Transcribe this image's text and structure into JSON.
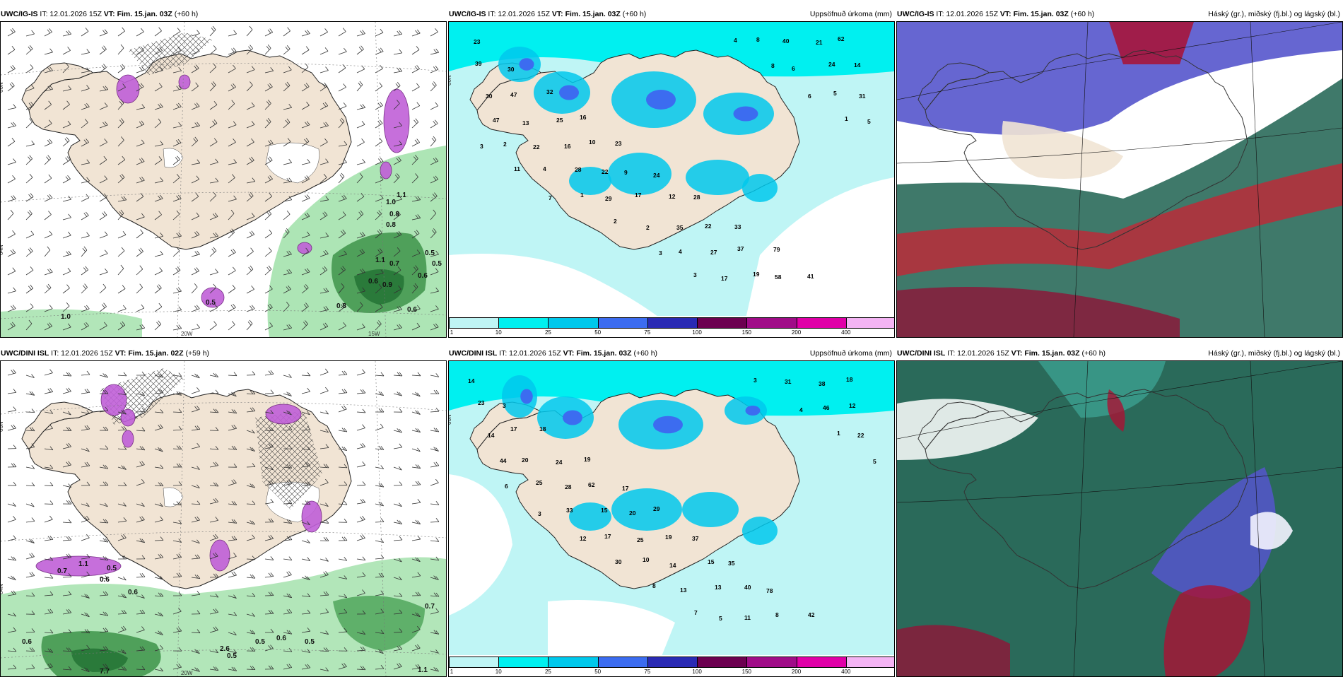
{
  "panels": {
    "p1": {
      "model": "UWC/IG-IS",
      "it": "IT: 12.01.2026 15Z",
      "vt": "VT: Fim. 15.jan. 03Z",
      "lead": "(+60 h)",
      "right": ""
    },
    "p2": {
      "model": "UWC/IG-IS",
      "it": "IT: 12.01.2026 15Z",
      "vt": "VT: Fim. 15.jan. 03Z",
      "lead": "(+60 h)",
      "right": "Uppsöfnuð úrkoma (mm)"
    },
    "p3": {
      "model": "UWC/IG-IS",
      "it": "IT: 12.01.2026 15Z",
      "vt": "VT: Fim. 15.jan. 03Z",
      "lead": "(+60 h)",
      "right": "Háský (gr.), miðský (fj.bl.) og lágský (bl.)"
    },
    "p4": {
      "model": "UWC/DINI ISL",
      "it": "IT: 12.01.2026 15Z",
      "vt": "VT: Fim. 15.jan. 02Z",
      "lead": "(+59 h)",
      "right": ""
    },
    "p5": {
      "model": "UWC/DINI ISL",
      "it": "IT: 12.01.2026 15Z",
      "vt": "VT: Fim. 15.jan. 03Z",
      "lead": "(+60 h)",
      "right": "Uppsöfnuð úrkoma (mm)"
    },
    "p6": {
      "model": "UWC/DINI ISL",
      "it": "IT: 12.01.2026 15Z",
      "vt": "VT: Fim. 15.jan. 03Z",
      "lead": "(+60 h)",
      "right": "Háský (gr.), miðský (fj.bl.) og lágský (bl.)"
    }
  },
  "axes": {
    "lat66": "66N",
    "lat64": "64N",
    "lon20": "20W",
    "lon15": "15W"
  },
  "colorbar": {
    "ticks": [
      "1",
      "10",
      "25",
      "50",
      "75",
      "100",
      "150",
      "200",
      "400"
    ],
    "colors": [
      "#bff5f5",
      "#00f0f0",
      "#00c8ec",
      "#3c6cf0",
      "#2a2ab4",
      "#6c0050",
      "#a00c88",
      "#e000a8",
      "#f4b4f4"
    ]
  },
  "colors": {
    "land": "#f1e4d4",
    "rain_green": "#9fe0a8",
    "rain_dark": "#2a7a3a",
    "snow_purple": "#c060d8",
    "sea_cyan": "#bff5f5",
    "precip_blue": "#22ccee",
    "cloud_blue": "#5555cc",
    "cloud_red": "#aa1133",
    "cloud_green": "#2a6a5a"
  },
  "precip_labels_top": [
    "23",
    "30",
    "32",
    "16",
    "23",
    "24",
    "28",
    "33",
    "79",
    "41",
    "62",
    "39",
    "47",
    "25",
    "10",
    "9",
    "12",
    "22",
    "37",
    "58",
    "21",
    "14",
    "30",
    "13",
    "16",
    "22",
    "17",
    "35",
    "27",
    "19",
    "40",
    "24",
    "31",
    "47",
    "22",
    "28",
    "29",
    "2",
    "4",
    "17",
    "8",
    "6",
    "5",
    "5",
    "2",
    "4",
    "1",
    "2",
    "3",
    "3",
    "4",
    "8",
    "6",
    "1",
    "3",
    "11",
    "7"
  ],
  "precip_labels_bottom": [
    "14",
    "3",
    "18",
    "19",
    "17",
    "29",
    "37",
    "35",
    "78",
    "42",
    "18",
    "23",
    "17",
    "24",
    "62",
    "20",
    "19",
    "15",
    "40",
    "8",
    "38",
    "12",
    "14",
    "20",
    "28",
    "15",
    "25",
    "14",
    "13",
    "11",
    "31",
    "46",
    "22",
    "44",
    "25",
    "33",
    "17",
    "10",
    "13",
    "5",
    "3",
    "4",
    "1",
    "5",
    "6",
    "3",
    "12",
    "30",
    "8",
    "7"
  ],
  "contour_labels_top": [
    "1.1",
    "1.0",
    "0.8",
    "0.8",
    "0.5",
    "1.1",
    "0.7",
    "0.5",
    "0.6",
    "0.9",
    "0.6",
    "0.8",
    "1.0",
    "0.5",
    "0.6"
  ],
  "contour_labels_bottom": [
    "0.7",
    "1.1",
    "0.5",
    "0.6",
    "0.6",
    "0.5",
    "0.5",
    "0.6",
    "0.5",
    "0.7",
    "1.1",
    "7.7",
    "2.6",
    "0.6"
  ]
}
